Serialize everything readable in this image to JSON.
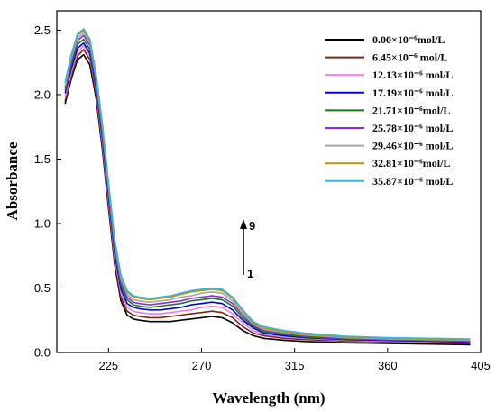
{
  "chart_data": {
    "type": "line",
    "xlabel": "Wavelength (nm)",
    "ylabel": "Absorbance",
    "xlim": [
      200,
      405
    ],
    "ylim": [
      0.0,
      2.65
    ],
    "xticks": [
      225,
      270,
      315,
      360,
      405
    ],
    "yticks": [
      0.0,
      0.5,
      1.0,
      1.5,
      2.0,
      2.5
    ],
    "xtick_labels": [
      "225",
      "270",
      "315",
      "360",
      "405"
    ],
    "ytick_labels": [
      "0.0",
      "0.5",
      "1.0",
      "1.5",
      "2.0",
      "2.5"
    ],
    "grid": false,
    "legend_position": "top-right",
    "x": [
      204,
      207,
      210,
      213,
      216,
      219,
      222,
      225,
      228,
      231,
      234,
      237,
      240,
      245,
      250,
      255,
      260,
      265,
      270,
      275,
      280,
      285,
      290,
      295,
      300,
      310,
      320,
      340,
      360,
      380,
      400
    ],
    "series": [
      {
        "name": "0.00×10⁻⁶mol/L",
        "color": "#000000",
        "values": [
          1.93,
          2.12,
          2.27,
          2.31,
          2.23,
          1.97,
          1.58,
          1.12,
          0.68,
          0.4,
          0.29,
          0.26,
          0.25,
          0.24,
          0.24,
          0.24,
          0.25,
          0.26,
          0.27,
          0.28,
          0.27,
          0.23,
          0.17,
          0.13,
          0.11,
          0.095,
          0.085,
          0.075,
          0.07,
          0.065,
          0.06
        ]
      },
      {
        "name": "6.45×10⁻⁶ mol/L",
        "color": "#7b2a10",
        "values": [
          1.95,
          2.14,
          2.3,
          2.35,
          2.27,
          2.0,
          1.61,
          1.15,
          0.71,
          0.43,
          0.32,
          0.29,
          0.28,
          0.27,
          0.27,
          0.28,
          0.29,
          0.3,
          0.31,
          0.32,
          0.31,
          0.27,
          0.2,
          0.15,
          0.13,
          0.11,
          0.1,
          0.088,
          0.082,
          0.076,
          0.07
        ]
      },
      {
        "name": "12.13×10⁻⁶ mol/L",
        "color": "#e87fe8",
        "values": [
          1.98,
          2.17,
          2.33,
          2.38,
          2.3,
          2.03,
          1.64,
          1.18,
          0.74,
          0.46,
          0.35,
          0.32,
          0.31,
          0.3,
          0.3,
          0.31,
          0.32,
          0.33,
          0.35,
          0.36,
          0.35,
          0.3,
          0.23,
          0.17,
          0.14,
          0.12,
          0.11,
          0.095,
          0.088,
          0.082,
          0.075
        ]
      },
      {
        "name": "17.19×10⁻⁶ mol/L",
        "color": "#0000ee",
        "values": [
          2.01,
          2.2,
          2.36,
          2.4,
          2.32,
          2.05,
          1.67,
          1.21,
          0.77,
          0.49,
          0.38,
          0.35,
          0.34,
          0.33,
          0.33,
          0.34,
          0.35,
          0.37,
          0.38,
          0.39,
          0.38,
          0.33,
          0.25,
          0.19,
          0.15,
          0.13,
          0.115,
          0.1,
          0.093,
          0.087,
          0.08
        ]
      },
      {
        "name": "21.71×10⁻⁶mol/L",
        "color": "#1a7a1a",
        "values": [
          2.03,
          2.23,
          2.39,
          2.43,
          2.35,
          2.08,
          1.7,
          1.24,
          0.8,
          0.52,
          0.41,
          0.37,
          0.36,
          0.35,
          0.36,
          0.37,
          0.38,
          0.4,
          0.41,
          0.42,
          0.41,
          0.36,
          0.27,
          0.2,
          0.16,
          0.14,
          0.12,
          0.105,
          0.097,
          0.091,
          0.085
        ]
      },
      {
        "name": "25.78×10⁻⁶ mol/L",
        "color": "#8b2be2",
        "values": [
          2.05,
          2.26,
          2.42,
          2.46,
          2.38,
          2.11,
          1.73,
          1.27,
          0.83,
          0.55,
          0.43,
          0.39,
          0.38,
          0.37,
          0.38,
          0.39,
          0.4,
          0.42,
          0.43,
          0.44,
          0.43,
          0.38,
          0.29,
          0.21,
          0.17,
          0.15,
          0.13,
          0.11,
          0.1,
          0.095,
          0.09
        ]
      },
      {
        "name": "29.46×10⁻⁶ mol/L",
        "color": "#a6a6a6",
        "values": [
          2.07,
          2.28,
          2.44,
          2.48,
          2.4,
          2.13,
          1.75,
          1.29,
          0.85,
          0.57,
          0.45,
          0.41,
          0.4,
          0.39,
          0.4,
          0.41,
          0.43,
          0.44,
          0.46,
          0.47,
          0.46,
          0.4,
          0.3,
          0.22,
          0.18,
          0.155,
          0.135,
          0.115,
          0.105,
          0.1,
          0.095
        ]
      },
      {
        "name": "32.81×10⁻⁶mol/L",
        "color": "#b8960a",
        "values": [
          2.09,
          2.3,
          2.46,
          2.5,
          2.42,
          2.15,
          1.77,
          1.31,
          0.87,
          0.59,
          0.47,
          0.43,
          0.42,
          0.41,
          0.42,
          0.43,
          0.45,
          0.47,
          0.48,
          0.49,
          0.48,
          0.42,
          0.32,
          0.23,
          0.19,
          0.16,
          0.14,
          0.12,
          0.11,
          0.105,
          0.1
        ]
      },
      {
        "name": "35.87×10⁻⁶ mol/L",
        "color": "#33b5e5",
        "values": [
          2.1,
          2.31,
          2.47,
          2.51,
          2.43,
          2.16,
          1.78,
          1.32,
          0.88,
          0.6,
          0.48,
          0.44,
          0.43,
          0.42,
          0.43,
          0.44,
          0.46,
          0.48,
          0.49,
          0.5,
          0.49,
          0.43,
          0.33,
          0.24,
          0.2,
          0.17,
          0.15,
          0.125,
          0.115,
          0.11,
          0.105
        ]
      }
    ],
    "annotations": [
      {
        "text": "9"
      },
      {
        "text": "1"
      }
    ]
  }
}
